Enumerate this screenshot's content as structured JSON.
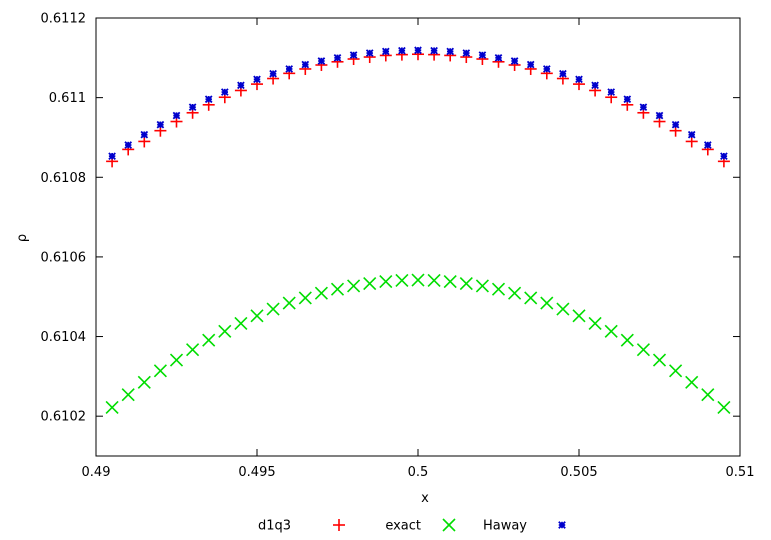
{
  "chart_data": {
    "type": "scatter",
    "title": "",
    "xlabel": "x",
    "ylabel": "ρ",
    "xlim": [
      0.49,
      0.51
    ],
    "ylim": [
      0.6101,
      0.6112
    ],
    "x_ticks": [
      0.49,
      0.495,
      0.5,
      0.505,
      0.51
    ],
    "x_tick_labels": [
      "0.49",
      "0.495",
      "0.5",
      "0.505",
      "0.51"
    ],
    "y_ticks": [
      0.6102,
      0.6104,
      0.6106,
      0.6108,
      0.611,
      0.6112
    ],
    "y_tick_labels": [
      "0.6102",
      "0.6104",
      "0.6106",
      "0.6108",
      "0.611",
      "0.6112"
    ],
    "grid": false,
    "legend_position": "bottom",
    "x": [
      0.4905,
      0.491,
      0.4915,
      0.492,
      0.4925,
      0.493,
      0.4935,
      0.494,
      0.4945,
      0.495,
      0.4955,
      0.496,
      0.4965,
      0.497,
      0.4975,
      0.498,
      0.4985,
      0.499,
      0.4995,
      0.5,
      0.5005,
      0.501,
      0.5015,
      0.502,
      0.5025,
      0.503,
      0.5035,
      0.504,
      0.5045,
      0.505,
      0.5055,
      0.506,
      0.5065,
      0.507,
      0.5075,
      0.508,
      0.5085,
      0.509,
      0.5095
    ],
    "series": [
      {
        "name": "d1q3",
        "marker": "plus",
        "color": "#ff0000",
        "values": [
          0.61084,
          0.61087,
          0.61089,
          0.610917,
          0.61094,
          0.610962,
          0.610982,
          0.611001,
          0.611018,
          0.611034,
          0.611048,
          0.611061,
          0.611072,
          0.611082,
          0.61109,
          0.611097,
          0.611102,
          0.611106,
          0.611108,
          0.611109,
          0.611108,
          0.611106,
          0.611102,
          0.611097,
          0.61109,
          0.611082,
          0.611072,
          0.611061,
          0.611048,
          0.611034,
          0.611018,
          0.611001,
          0.610982,
          0.610962,
          0.61094,
          0.610917,
          0.61089,
          0.61087,
          0.61084
        ]
      },
      {
        "name": "exact",
        "marker": "cross",
        "color": "#00dd00",
        "values": [
          0.610222,
          0.610254,
          0.610285,
          0.610314,
          0.610341,
          0.610367,
          0.610391,
          0.610413,
          0.610433,
          0.610452,
          0.610469,
          0.610484,
          0.610497,
          0.610509,
          0.610519,
          0.610527,
          0.610533,
          0.610538,
          0.610541,
          0.610542,
          0.610541,
          0.610538,
          0.610533,
          0.610527,
          0.610519,
          0.610509,
          0.610497,
          0.610484,
          0.610469,
          0.610452,
          0.610433,
          0.610413,
          0.610391,
          0.610367,
          0.610341,
          0.610314,
          0.610285,
          0.610254,
          0.610222
        ]
      },
      {
        "name": "Haway",
        "marker": "star",
        "color": "#0000cc",
        "values": [
          0.610853,
          0.610881,
          0.610907,
          0.610932,
          0.610955,
          0.610976,
          0.610996,
          0.611014,
          0.611031,
          0.611046,
          0.61106,
          0.611072,
          0.611083,
          0.611092,
          0.6111,
          0.611107,
          0.611112,
          0.611116,
          0.611118,
          0.611119,
          0.611118,
          0.611116,
          0.611112,
          0.611107,
          0.6111,
          0.611092,
          0.611083,
          0.611072,
          0.61106,
          0.611046,
          0.611031,
          0.611014,
          0.610996,
          0.610976,
          0.610955,
          0.610932,
          0.610907,
          0.610881,
          0.610853
        ]
      }
    ]
  }
}
